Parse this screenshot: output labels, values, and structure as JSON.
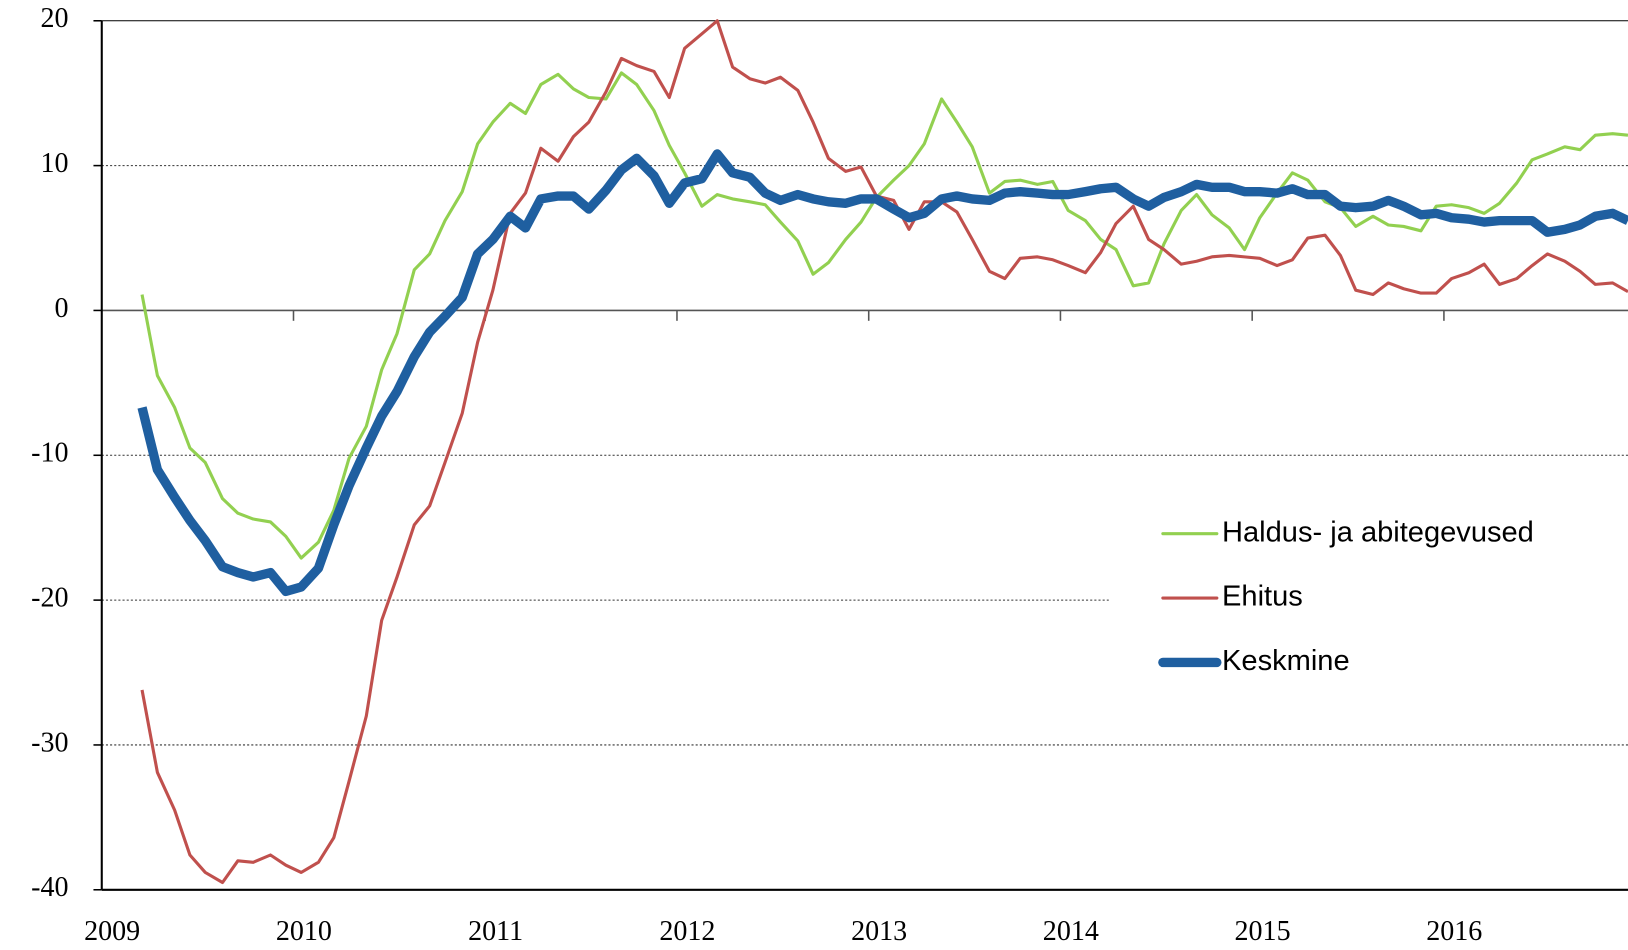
{
  "chart_data": {
    "type": "line",
    "x": [
      2009.21,
      2009.29,
      2009.38,
      2009.46,
      2009.54,
      2009.63,
      2009.71,
      2009.79,
      2009.88,
      2009.96,
      2010.04,
      2010.13,
      2010.21,
      2010.29,
      2010.38,
      2010.46,
      2010.54,
      2010.63,
      2010.71,
      2010.79,
      2010.88,
      2010.96,
      2011.04,
      2011.13,
      2011.21,
      2011.29,
      2011.38,
      2011.46,
      2011.54,
      2011.63,
      2011.71,
      2011.79,
      2011.88,
      2011.96,
      2012.04,
      2012.13,
      2012.21,
      2012.29,
      2012.38,
      2012.46,
      2012.54,
      2012.63,
      2012.71,
      2012.79,
      2012.88,
      2012.96,
      2013.04,
      2013.13,
      2013.21,
      2013.29,
      2013.38,
      2013.46,
      2013.54,
      2013.63,
      2013.71,
      2013.79,
      2013.88,
      2013.96,
      2014.04,
      2014.13,
      2014.21,
      2014.29,
      2014.38,
      2014.46,
      2014.54,
      2014.63,
      2014.71,
      2014.79,
      2014.88,
      2014.96,
      2015.04,
      2015.13,
      2015.21,
      2015.29,
      2015.38,
      2015.46,
      2015.54,
      2015.63,
      2015.71,
      2015.79,
      2015.88,
      2015.96,
      2016.04,
      2016.13,
      2016.21,
      2016.29,
      2016.38,
      2016.46,
      2016.54,
      2016.63,
      2016.71,
      2016.79,
      2016.88,
      2016.96
    ],
    "series": [
      {
        "name": "Haldus- ja abitegevused",
        "color": "#92d050",
        "line_width": 3,
        "values": [
          1.1,
          -4.5,
          -6.7,
          -9.5,
          -10.5,
          -13,
          -14,
          -14.4,
          -14.6,
          -15.6,
          -17.1,
          -16,
          -13.8,
          -10.2,
          -8,
          -4.1,
          -1.6,
          2.8,
          3.9,
          6.2,
          8.2,
          11.5,
          13,
          14.3,
          13.6,
          15.6,
          16.3,
          15.3,
          14.7,
          14.6,
          16.4,
          15.6,
          13.8,
          11.4,
          9.5,
          7.2,
          8,
          7.7,
          7.5,
          7.3,
          6.1,
          4.8,
          2.5,
          3.3,
          4.9,
          6.1,
          7.8,
          9,
          10,
          11.5,
          14.6,
          13,
          11.3,
          8.1,
          8.9,
          9,
          8.7,
          8.9,
          6.9,
          6.2,
          4.9,
          4.2,
          1.7,
          1.9,
          4.6,
          6.9,
          8,
          6.6,
          5.7,
          4.2,
          6.4,
          8.1,
          9.5,
          9,
          7.5,
          7.1,
          5.8,
          6.5,
          5.9,
          5.8,
          5.5,
          7.2,
          7.3,
          7.1,
          6.7,
          7.4,
          8.8,
          10.4,
          10.8,
          11.3,
          11.1,
          12.1,
          12.2,
          12.1
        ]
      },
      {
        "name": "Ehitus",
        "color": "#c0504d",
        "line_width": 3,
        "values": [
          -26.2,
          -31.9,
          -34.5,
          -37.6,
          -38.8,
          -39.5,
          -38,
          -38.1,
          -37.6,
          -38.3,
          -38.8,
          -38.1,
          -36.4,
          -32.5,
          -28,
          -21.4,
          -18.4,
          -14.8,
          -13.5,
          -10.5,
          -7.1,
          -2.2,
          1.4,
          6.7,
          8.1,
          11.2,
          10.3,
          12,
          13,
          15.1,
          17.4,
          16.9,
          16.5,
          14.7,
          18.1,
          19.1,
          20,
          16.8,
          16,
          15.7,
          16.1,
          15.2,
          13,
          10.5,
          9.6,
          9.9,
          7.9,
          7.6,
          5.6,
          7.5,
          7.5,
          6.8,
          4.9,
          2.7,
          2.2,
          3.6,
          3.7,
          3.5,
          3.1,
          2.6,
          4,
          6,
          7.2,
          4.9,
          4.2,
          3.2,
          3.4,
          3.7,
          3.8,
          3.7,
          3.6,
          3.1,
          3.5,
          5,
          5.2,
          3.8,
          1.4,
          1.1,
          1.9,
          1.5,
          1.2,
          1.2,
          2.2,
          2.6,
          3.2,
          1.8,
          2.2,
          3.1,
          3.9,
          3.4,
          2.7,
          1.8,
          1.9,
          1.3
        ]
      },
      {
        "name": "Keskmine",
        "color": "#1f5fa0",
        "line_width": 9,
        "values": [
          -6.7,
          -11,
          -12.9,
          -14.5,
          -15.9,
          -17.7,
          -18.1,
          -18.4,
          -18.1,
          -19.4,
          -19.1,
          -17.8,
          -14.8,
          -12.1,
          -9.5,
          -7.3,
          -5.6,
          -3.2,
          -1.5,
          -0.4,
          0.9,
          3.9,
          4.9,
          6.5,
          5.7,
          7.7,
          7.9,
          7.9,
          7,
          8.3,
          9.7,
          10.5,
          9.3,
          7.4,
          8.8,
          9.1,
          10.8,
          9.5,
          9.2,
          8.1,
          7.6,
          8,
          7.7,
          7.5,
          7.4,
          7.7,
          7.7,
          7,
          6.4,
          6.7,
          7.7,
          7.9,
          7.7,
          7.6,
          8.1,
          8.2,
          8.1,
          8,
          8,
          8.2,
          8.4,
          8.5,
          7.7,
          7.2,
          7.8,
          8.2,
          8.7,
          8.5,
          8.5,
          8.2,
          8.2,
          8.1,
          8.4,
          8,
          8,
          7.2,
          7.1,
          7.2,
          7.6,
          7.2,
          6.6,
          6.7,
          6.4,
          6.3,
          6.1,
          6.2,
          6.2,
          6.2,
          5.4,
          5.6,
          5.9,
          6.5,
          6.7,
          6.2
        ]
      }
    ],
    "xlim": [
      2009,
      2016.96
    ],
    "xticks": [
      2009,
      2010,
      2011,
      2012,
      2013,
      2014,
      2015,
      2016
    ],
    "ylim": [
      -40,
      20
    ],
    "yticks": [
      -40,
      -30,
      -20,
      -10,
      0,
      10,
      20
    ],
    "grid": true
  }
}
